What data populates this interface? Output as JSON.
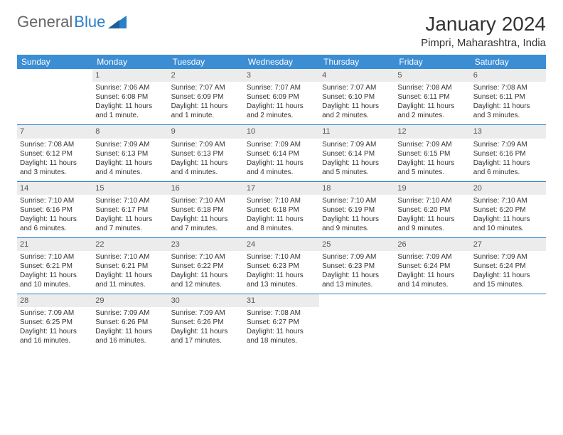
{
  "logo": {
    "text_gen": "General",
    "text_blue": "Blue"
  },
  "title": "January 2024",
  "location": "Pimpri, Maharashtra, India",
  "colors": {
    "header_bg": "#3b8dd4",
    "header_text": "#ffffff",
    "daynum_bg": "#ececec",
    "week_border": "#2a7fc9",
    "logo_blue": "#2a7fc9",
    "body_text": "#333333"
  },
  "fonts": {
    "title_size": 28,
    "location_size": 15,
    "dayheader_size": 12,
    "cell_size": 10
  },
  "day_headers": [
    "Sunday",
    "Monday",
    "Tuesday",
    "Wednesday",
    "Thursday",
    "Friday",
    "Saturday"
  ],
  "weeks": [
    [
      null,
      {
        "n": "1",
        "sr": "Sunrise: 7:06 AM",
        "ss": "Sunset: 6:08 PM",
        "dl1": "Daylight: 11 hours",
        "dl2": "and 1 minute."
      },
      {
        "n": "2",
        "sr": "Sunrise: 7:07 AM",
        "ss": "Sunset: 6:09 PM",
        "dl1": "Daylight: 11 hours",
        "dl2": "and 1 minute."
      },
      {
        "n": "3",
        "sr": "Sunrise: 7:07 AM",
        "ss": "Sunset: 6:09 PM",
        "dl1": "Daylight: 11 hours",
        "dl2": "and 2 minutes."
      },
      {
        "n": "4",
        "sr": "Sunrise: 7:07 AM",
        "ss": "Sunset: 6:10 PM",
        "dl1": "Daylight: 11 hours",
        "dl2": "and 2 minutes."
      },
      {
        "n": "5",
        "sr": "Sunrise: 7:08 AM",
        "ss": "Sunset: 6:11 PM",
        "dl1": "Daylight: 11 hours",
        "dl2": "and 2 minutes."
      },
      {
        "n": "6",
        "sr": "Sunrise: 7:08 AM",
        "ss": "Sunset: 6:11 PM",
        "dl1": "Daylight: 11 hours",
        "dl2": "and 3 minutes."
      }
    ],
    [
      {
        "n": "7",
        "sr": "Sunrise: 7:08 AM",
        "ss": "Sunset: 6:12 PM",
        "dl1": "Daylight: 11 hours",
        "dl2": "and 3 minutes."
      },
      {
        "n": "8",
        "sr": "Sunrise: 7:09 AM",
        "ss": "Sunset: 6:13 PM",
        "dl1": "Daylight: 11 hours",
        "dl2": "and 4 minutes."
      },
      {
        "n": "9",
        "sr": "Sunrise: 7:09 AM",
        "ss": "Sunset: 6:13 PM",
        "dl1": "Daylight: 11 hours",
        "dl2": "and 4 minutes."
      },
      {
        "n": "10",
        "sr": "Sunrise: 7:09 AM",
        "ss": "Sunset: 6:14 PM",
        "dl1": "Daylight: 11 hours",
        "dl2": "and 4 minutes."
      },
      {
        "n": "11",
        "sr": "Sunrise: 7:09 AM",
        "ss": "Sunset: 6:14 PM",
        "dl1": "Daylight: 11 hours",
        "dl2": "and 5 minutes."
      },
      {
        "n": "12",
        "sr": "Sunrise: 7:09 AM",
        "ss": "Sunset: 6:15 PM",
        "dl1": "Daylight: 11 hours",
        "dl2": "and 5 minutes."
      },
      {
        "n": "13",
        "sr": "Sunrise: 7:09 AM",
        "ss": "Sunset: 6:16 PM",
        "dl1": "Daylight: 11 hours",
        "dl2": "and 6 minutes."
      }
    ],
    [
      {
        "n": "14",
        "sr": "Sunrise: 7:10 AM",
        "ss": "Sunset: 6:16 PM",
        "dl1": "Daylight: 11 hours",
        "dl2": "and 6 minutes."
      },
      {
        "n": "15",
        "sr": "Sunrise: 7:10 AM",
        "ss": "Sunset: 6:17 PM",
        "dl1": "Daylight: 11 hours",
        "dl2": "and 7 minutes."
      },
      {
        "n": "16",
        "sr": "Sunrise: 7:10 AM",
        "ss": "Sunset: 6:18 PM",
        "dl1": "Daylight: 11 hours",
        "dl2": "and 7 minutes."
      },
      {
        "n": "17",
        "sr": "Sunrise: 7:10 AM",
        "ss": "Sunset: 6:18 PM",
        "dl1": "Daylight: 11 hours",
        "dl2": "and 8 minutes."
      },
      {
        "n": "18",
        "sr": "Sunrise: 7:10 AM",
        "ss": "Sunset: 6:19 PM",
        "dl1": "Daylight: 11 hours",
        "dl2": "and 9 minutes."
      },
      {
        "n": "19",
        "sr": "Sunrise: 7:10 AM",
        "ss": "Sunset: 6:20 PM",
        "dl1": "Daylight: 11 hours",
        "dl2": "and 9 minutes."
      },
      {
        "n": "20",
        "sr": "Sunrise: 7:10 AM",
        "ss": "Sunset: 6:20 PM",
        "dl1": "Daylight: 11 hours",
        "dl2": "and 10 minutes."
      }
    ],
    [
      {
        "n": "21",
        "sr": "Sunrise: 7:10 AM",
        "ss": "Sunset: 6:21 PM",
        "dl1": "Daylight: 11 hours",
        "dl2": "and 10 minutes."
      },
      {
        "n": "22",
        "sr": "Sunrise: 7:10 AM",
        "ss": "Sunset: 6:21 PM",
        "dl1": "Daylight: 11 hours",
        "dl2": "and 11 minutes."
      },
      {
        "n": "23",
        "sr": "Sunrise: 7:10 AM",
        "ss": "Sunset: 6:22 PM",
        "dl1": "Daylight: 11 hours",
        "dl2": "and 12 minutes."
      },
      {
        "n": "24",
        "sr": "Sunrise: 7:10 AM",
        "ss": "Sunset: 6:23 PM",
        "dl1": "Daylight: 11 hours",
        "dl2": "and 13 minutes."
      },
      {
        "n": "25",
        "sr": "Sunrise: 7:09 AM",
        "ss": "Sunset: 6:23 PM",
        "dl1": "Daylight: 11 hours",
        "dl2": "and 13 minutes."
      },
      {
        "n": "26",
        "sr": "Sunrise: 7:09 AM",
        "ss": "Sunset: 6:24 PM",
        "dl1": "Daylight: 11 hours",
        "dl2": "and 14 minutes."
      },
      {
        "n": "27",
        "sr": "Sunrise: 7:09 AM",
        "ss": "Sunset: 6:24 PM",
        "dl1": "Daylight: 11 hours",
        "dl2": "and 15 minutes."
      }
    ],
    [
      {
        "n": "28",
        "sr": "Sunrise: 7:09 AM",
        "ss": "Sunset: 6:25 PM",
        "dl1": "Daylight: 11 hours",
        "dl2": "and 16 minutes."
      },
      {
        "n": "29",
        "sr": "Sunrise: 7:09 AM",
        "ss": "Sunset: 6:26 PM",
        "dl1": "Daylight: 11 hours",
        "dl2": "and 16 minutes."
      },
      {
        "n": "30",
        "sr": "Sunrise: 7:09 AM",
        "ss": "Sunset: 6:26 PM",
        "dl1": "Daylight: 11 hours",
        "dl2": "and 17 minutes."
      },
      {
        "n": "31",
        "sr": "Sunrise: 7:08 AM",
        "ss": "Sunset: 6:27 PM",
        "dl1": "Daylight: 11 hours",
        "dl2": "and 18 minutes."
      },
      null,
      null,
      null
    ]
  ]
}
